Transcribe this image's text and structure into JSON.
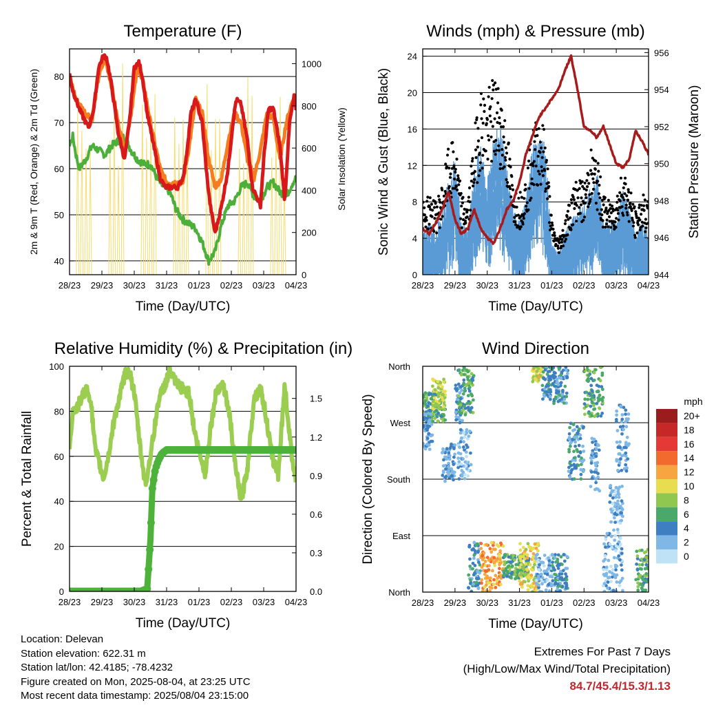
{
  "colors": {
    "t2m": "#d7191c",
    "t9m": "#f57c1f",
    "td": "#4caf3a",
    "solar": "#f5dc6e",
    "wind": "#5b9bd5",
    "gust": "#000000",
    "pressure": "#a61c1c",
    "rh": "#9acd50",
    "precip": "#4cb23a",
    "accent": "#c0272d"
  },
  "chart_data": [
    {
      "type": "line",
      "title": "Temperature (F)",
      "xlabel": "Time (Day/UTC)",
      "ylabel": "2m & 9m T (Red, Orange) & 2m Td (Green)",
      "ylabel_right": "Solar Insolation (Yellow)",
      "ylim": [
        37,
        86
      ],
      "yticks": [
        40,
        50,
        60,
        70,
        80
      ],
      "ylim_right": [
        0,
        1070
      ],
      "yticks_right": [
        0,
        200,
        400,
        600,
        800,
        1000
      ],
      "xlim": [
        0,
        7
      ],
      "xtick_labels": [
        "28/23",
        "29/23",
        "30/23",
        "31/23",
        "01/23",
        "02/23",
        "03/23",
        "04/23"
      ],
      "gridlines": [
        40,
        50,
        60,
        70,
        80
      ],
      "series": [
        {
          "key": "t2m",
          "x": [
            0,
            0.1,
            0.3,
            0.5,
            0.6,
            0.75,
            0.9,
            1.05,
            1.15,
            1.3,
            1.5,
            1.7,
            1.85,
            2.0,
            2.15,
            2.25,
            2.4,
            2.6,
            2.8,
            2.95,
            3.1,
            3.2,
            3.35,
            3.5,
            3.6,
            3.75,
            3.9,
            4.1,
            4.25,
            4.35,
            4.5,
            4.7,
            4.9,
            5.05,
            5.15,
            5.3,
            5.5,
            5.65,
            5.9,
            6.0,
            6.15,
            6.3,
            6.5,
            6.65,
            6.8,
            6.95,
            7.0
          ],
          "y": [
            80.5,
            77,
            73,
            70,
            69,
            73,
            82,
            84.5,
            84,
            78,
            68,
            62,
            70,
            82,
            83,
            80,
            72,
            65,
            58,
            56,
            56,
            56,
            56,
            58,
            62,
            72,
            75,
            70,
            58,
            52,
            46,
            52,
            60,
            70,
            75,
            74,
            66,
            56,
            52,
            62,
            73,
            73,
            65,
            53,
            70,
            76,
            73
          ]
        },
        {
          "key": "t9m",
          "x": [
            0,
            0.2,
            0.5,
            0.7,
            0.9,
            1.1,
            1.3,
            1.5,
            1.7,
            1.9,
            2.1,
            2.3,
            2.5,
            2.8,
            3.0,
            3.2,
            3.5,
            3.7,
            3.9,
            4.1,
            4.3,
            4.5,
            4.7,
            4.9,
            5.1,
            5.3,
            5.5,
            5.7,
            5.9,
            6.1,
            6.3,
            6.5,
            6.7,
            6.9,
            7.0
          ],
          "y": [
            80,
            75,
            72,
            71,
            80,
            84,
            78,
            70,
            64,
            72,
            82,
            78,
            70,
            60,
            57,
            57,
            57,
            65,
            75,
            72,
            62,
            56,
            58,
            66,
            72,
            70,
            62,
            58,
            64,
            72,
            71,
            62,
            70,
            75,
            74
          ]
        },
        {
          "key": "td",
          "x": [
            0,
            0.1,
            0.2,
            0.3,
            0.5,
            0.7,
            0.9,
            1.1,
            1.3,
            1.5,
            1.7,
            1.9,
            2.1,
            2.3,
            2.5,
            2.7,
            2.9,
            3.1,
            3.3,
            3.5,
            3.7,
            3.9,
            4.1,
            4.3,
            4.5,
            4.7,
            4.9,
            5.1,
            5.3,
            5.5,
            5.7,
            5.9,
            6.1,
            6.3,
            6.5,
            6.7,
            6.9,
            7.0
          ],
          "y": [
            65,
            67,
            63,
            60,
            62,
            65,
            64,
            63,
            65,
            66,
            67,
            64,
            62,
            61,
            61,
            58,
            56,
            55,
            51,
            49,
            48,
            47,
            44,
            40,
            42,
            48,
            52,
            53,
            56,
            57,
            54,
            53,
            56,
            57,
            55,
            54,
            57,
            58
          ]
        }
      ]
    },
    {
      "type": "scatter",
      "title": "Winds (mph) & Pressure (mb)",
      "xlabel": "Time (Day/UTC)",
      "ylabel": "Sonic Wind & Gust (Blue, Black)",
      "ylabel_right": "Station Pressure (Maroon)",
      "ylim": [
        0,
        24.8
      ],
      "yticks": [
        0,
        4,
        8,
        12,
        16,
        20,
        24
      ],
      "ylim_right": [
        944,
        956.2
      ],
      "yticks_right": [
        944,
        946,
        948,
        950,
        952,
        954,
        956
      ],
      "xlim": [
        0,
        7
      ],
      "xtick_labels": [
        "28/23",
        "29/23",
        "30/23",
        "31/23",
        "01/23",
        "02/23",
        "03/23",
        "04/23"
      ],
      "gridlines": [
        4,
        8,
        12,
        16,
        20,
        24
      ],
      "wind_envelope": {
        "x": [
          0,
          0.2,
          0.4,
          0.6,
          0.8,
          1.0,
          1.2,
          1.4,
          1.6,
          1.8,
          2.0,
          2.2,
          2.4,
          2.6,
          2.8,
          3.0,
          3.2,
          3.4,
          3.6,
          3.8,
          4.0,
          4.2,
          4.4,
          4.6,
          4.8,
          5.0,
          5.2,
          5.4,
          5.6,
          5.8,
          6.0,
          6.2,
          6.4,
          6.6,
          6.8,
          7.0
        ],
        "y": [
          4,
          5,
          4,
          6,
          9,
          11,
          5,
          4,
          10,
          12,
          9,
          13,
          14,
          10,
          6,
          5,
          7,
          12,
          13,
          12,
          3,
          2,
          4,
          5,
          6,
          7,
          8,
          10,
          5,
          5,
          5,
          8,
          6,
          4,
          5,
          4
        ]
      },
      "gust_envelope": {
        "x": [
          0,
          0.2,
          0.4,
          0.6,
          0.8,
          1.0,
          1.2,
          1.4,
          1.6,
          1.8,
          2.0,
          2.2,
          2.4,
          2.6,
          2.8,
          3.0,
          3.2,
          3.4,
          3.6,
          3.8,
          4.0,
          4.2,
          4.4,
          4.6,
          4.8,
          5.0,
          5.2,
          5.4,
          5.6,
          5.8,
          6.0,
          6.2,
          6.4,
          6.6,
          6.8,
          7.0
        ],
        "y": [
          8,
          9,
          8,
          10,
          14,
          15,
          9,
          8,
          16,
          21,
          20,
          22,
          21,
          17,
          10,
          9,
          11,
          16,
          18,
          16,
          6,
          4,
          6,
          9,
          11,
          10,
          14,
          13,
          9,
          8,
          9,
          12,
          10,
          7,
          9,
          8
        ]
      },
      "pressure": {
        "x": [
          0,
          0.2,
          0.4,
          0.6,
          0.8,
          1.0,
          1.2,
          1.4,
          1.6,
          1.8,
          2.0,
          2.2,
          2.4,
          2.6,
          2.8,
          3.0,
          3.2,
          3.4,
          3.6,
          3.8,
          4.0,
          4.2,
          4.4,
          4.6,
          4.8,
          5.0,
          5.2,
          5.4,
          5.6,
          5.8,
          6.0,
          6.2,
          6.4,
          6.6,
          6.8,
          7.0
        ],
        "y": [
          946.5,
          946.2,
          946.8,
          947.5,
          948.5,
          947,
          946.2,
          946.5,
          947.5,
          946.5,
          946,
          945.7,
          946.5,
          947.5,
          948,
          949,
          950.5,
          951.5,
          952.5,
          953,
          953.5,
          954,
          955,
          955.8,
          954,
          952,
          951.8,
          951.4,
          952,
          951,
          950,
          949.8,
          950.2,
          951.8,
          951.2,
          950.5
        ]
      }
    },
    {
      "type": "line",
      "title": "Relative Humidity (%) & Precipitation (in)",
      "xlabel": "Time (Day/UTC)",
      "ylabel": "Percent & Total Rainfall",
      "ylim": [
        0,
        100
      ],
      "yticks": [
        0,
        20,
        40,
        60,
        80,
        100
      ],
      "ylim_right": [
        0,
        1.75
      ],
      "yticks_right": [
        "0.0",
        "0.3",
        "0.6",
        "0.9",
        "1.2",
        "1.5"
      ],
      "xlim": [
        0,
        7
      ],
      "xtick_labels": [
        "28/23",
        "29/23",
        "30/23",
        "31/23",
        "01/23",
        "02/23",
        "03/23",
        "04/23"
      ],
      "gridlines": [
        0,
        20,
        40,
        60,
        80,
        100
      ],
      "series": [
        {
          "key": "rh",
          "x": [
            0,
            0.1,
            0.25,
            0.5,
            0.65,
            0.8,
            0.9,
            1.05,
            1.2,
            1.4,
            1.55,
            1.7,
            1.85,
            2.0,
            2.2,
            2.35,
            2.55,
            2.75,
            2.95,
            3.1,
            3.3,
            3.5,
            3.7,
            3.85,
            4.0,
            4.2,
            4.35,
            4.55,
            4.75,
            4.95,
            5.1,
            5.3,
            5.5,
            5.7,
            5.9,
            6.05,
            6.25,
            6.45,
            6.65,
            6.85,
            7.0
          ],
          "y": [
            65,
            80,
            82,
            90,
            86,
            62,
            58,
            50,
            60,
            78,
            86,
            96,
            98,
            88,
            62,
            47,
            65,
            85,
            92,
            98,
            92,
            90,
            88,
            72,
            62,
            52,
            72,
            90,
            92,
            78,
            58,
            40,
            55,
            86,
            90,
            80,
            60,
            52,
            92,
            62,
            50
          ]
        },
        {
          "key": "precip",
          "x": [
            0,
            0.5,
            1.0,
            1.5,
            2.2,
            2.4,
            2.5,
            2.56,
            2.65,
            2.75,
            2.85,
            3.0,
            3.3,
            4.0,
            5.0,
            6.0,
            7.0
          ],
          "y": [
            0,
            0,
            0,
            0,
            0,
            0.02,
            0.4,
            0.8,
            0.95,
            1.02,
            1.07,
            1.1,
            1.1,
            1.1,
            1.1,
            1.1,
            1.1
          ]
        }
      ]
    },
    {
      "type": "scatter",
      "title": "Wind Direction",
      "xlabel": "Time (Day/UTC)",
      "ylabel": "Direction (Colored By Speed)",
      "ylim": [
        0,
        360
      ],
      "ytick_labels": [
        "North",
        "East",
        "South",
        "West",
        "North"
      ],
      "xlim": [
        0,
        7
      ],
      "xtick_labels": [
        "28/23",
        "29/23",
        "30/23",
        "31/23",
        "01/23",
        "02/23",
        "03/23",
        "04/23"
      ],
      "legend": {
        "title": "mph",
        "labels": [
          "20+",
          "18",
          "16",
          "14",
          "12",
          "10",
          "8",
          "6",
          "4",
          "2",
          "0"
        ],
        "colors": [
          "#9b1c1c",
          "#c62828",
          "#e53935",
          "#f26a2e",
          "#f6a541",
          "#e8dc50",
          "#8fc750",
          "#4aa86a",
          "#3d7fc1",
          "#7fb8e6",
          "#bfe2f6"
        ]
      },
      "clusters": [
        {
          "x": [
            0.0,
            0.7
          ],
          "y": [
            270,
            320
          ],
          "speed": 6
        },
        {
          "x": [
            0.0,
            0.3
          ],
          "y": [
            225,
            290
          ],
          "speed": 3
        },
        {
          "x": [
            0.3,
            0.7
          ],
          "y": [
            290,
            340
          ],
          "speed": 9
        },
        {
          "x": [
            0.6,
            1.0
          ],
          "y": [
            175,
            240
          ],
          "speed": 3
        },
        {
          "x": [
            1.0,
            1.25
          ],
          "y": [
            270,
            330
          ],
          "speed": 3
        },
        {
          "x": [
            1.1,
            1.6
          ],
          "y": [
            280,
            360
          ],
          "speed": 6
        },
        {
          "x": [
            1.1,
            1.5
          ],
          "y": [
            180,
            260
          ],
          "speed": 2
        },
        {
          "x": [
            1.4,
            1.8
          ],
          "y": [
            0,
            80
          ],
          "speed": 4
        },
        {
          "x": [
            1.8,
            2.5
          ],
          "y": [
            0,
            80
          ],
          "speed": 12
        },
        {
          "x": [
            2.5,
            3.3
          ],
          "y": [
            20,
            60
          ],
          "speed": 6
        },
        {
          "x": [
            3.0,
            3.6
          ],
          "y": [
            0,
            80
          ],
          "speed": 10
        },
        {
          "x": [
            3.4,
            3.7
          ],
          "y": [
            335,
            360
          ],
          "speed": 10
        },
        {
          "x": [
            3.5,
            4.0
          ],
          "y": [
            0,
            60
          ],
          "speed": 2
        },
        {
          "x": [
            3.7,
            4.5
          ],
          "y": [
            300,
            360
          ],
          "speed": 4
        },
        {
          "x": [
            4.0,
            4.5
          ],
          "y": [
            0,
            60
          ],
          "speed": 4
        },
        {
          "x": [
            4.5,
            5.0
          ],
          "y": [
            180,
            270
          ],
          "speed": 4
        },
        {
          "x": [
            5.0,
            5.6
          ],
          "y": [
            280,
            360
          ],
          "speed": 6
        },
        {
          "x": [
            5.2,
            5.5
          ],
          "y": [
            160,
            250
          ],
          "speed": 3
        },
        {
          "x": [
            5.6,
            6.2
          ],
          "y": [
            0,
            100
          ],
          "speed": 2
        },
        {
          "x": [
            5.8,
            6.2
          ],
          "y": [
            110,
            170
          ],
          "speed": 2
        },
        {
          "x": [
            6.0,
            6.4
          ],
          "y": [
            190,
            300
          ],
          "speed": 3
        },
        {
          "x": [
            6.6,
            7.0
          ],
          "y": [
            0,
            70
          ],
          "speed": 6
        }
      ]
    }
  ],
  "info": {
    "location": "Location: Delevan",
    "elevation": "Station elevation: 622.31 m",
    "latlon": "Station lat/lon: 42.4185; -78.4232",
    "created": "Figure created on Mon, 2025-08-04, at 23:25 UTC",
    "recent": "Most recent data timestamp: 2025/08/04 23:15:00"
  },
  "extremes": {
    "title": "Extremes For Past 7 Days",
    "subtitle": "(High/Low/Max Wind/Total Precipitation)",
    "values": "84.7/45.4/15.3/1.13"
  }
}
